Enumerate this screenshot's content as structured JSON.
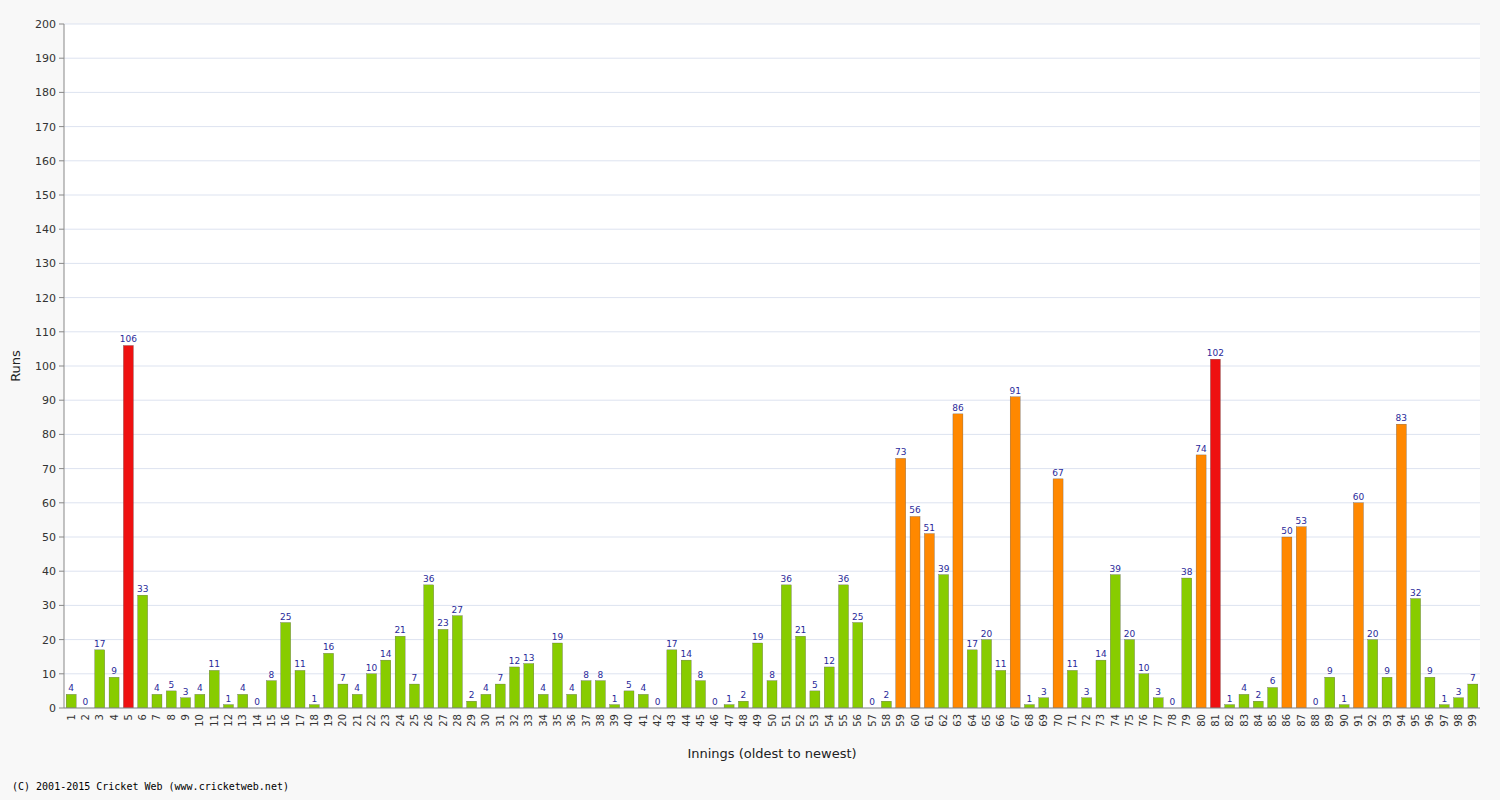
{
  "chart_data": {
    "type": "bar",
    "xlabel": "Innings (oldest to newest)",
    "ylabel": "Runs",
    "categories": [
      "1",
      "2",
      "3",
      "4",
      "5",
      "6",
      "7",
      "8",
      "9",
      "10",
      "11",
      "12",
      "13",
      "14",
      "15",
      "16",
      "17",
      "18",
      "19",
      "20",
      "21",
      "22",
      "23",
      "24",
      "25",
      "26",
      "27",
      "28",
      "29",
      "30",
      "31",
      "32",
      "33",
      "34",
      "35",
      "36",
      "37",
      "38",
      "39",
      "40",
      "41",
      "42",
      "43",
      "44",
      "45",
      "46",
      "47",
      "48",
      "49",
      "50",
      "51",
      "52",
      "53",
      "54",
      "55",
      "56",
      "57",
      "58",
      "59",
      "60",
      "61",
      "62",
      "63",
      "64",
      "65",
      "66",
      "67",
      "68",
      "69",
      "70",
      "71",
      "72",
      "73",
      "74",
      "75",
      "76",
      "77",
      "78",
      "79",
      "80",
      "81",
      "82",
      "83",
      "84",
      "85",
      "86",
      "87",
      "88",
      "89",
      "90",
      "91",
      "92",
      "93",
      "94",
      "95",
      "96",
      "97",
      "98",
      "99"
    ],
    "values": [
      4,
      0,
      17,
      9,
      106,
      33,
      4,
      5,
      3,
      4,
      11,
      1,
      4,
      0,
      8,
      25,
      11,
      1,
      16,
      7,
      4,
      10,
      14,
      21,
      7,
      36,
      23,
      27,
      2,
      4,
      7,
      12,
      13,
      4,
      19,
      4,
      8,
      8,
      1,
      5,
      4,
      0,
      17,
      14,
      8,
      0,
      1,
      2,
      19,
      8,
      36,
      21,
      5,
      12,
      36,
      25,
      0,
      2,
      73,
      56,
      51,
      39,
      86,
      17,
      20,
      11,
      91,
      1,
      3,
      67,
      11,
      3,
      14,
      39,
      20,
      10,
      3,
      0,
      38,
      74,
      102,
      1,
      4,
      2,
      6,
      50,
      53,
      0,
      9,
      1,
      60,
      20,
      9,
      83,
      32,
      9,
      1,
      3,
      7
    ],
    "colors": [
      "#88CC00",
      "#88CC00",
      "#88CC00",
      "#88CC00",
      "#EE1111",
      "#88CC00",
      "#88CC00",
      "#88CC00",
      "#88CC00",
      "#88CC00",
      "#88CC00",
      "#88CC00",
      "#88CC00",
      "#88CC00",
      "#88CC00",
      "#88CC00",
      "#88CC00",
      "#88CC00",
      "#88CC00",
      "#88CC00",
      "#88CC00",
      "#88CC00",
      "#88CC00",
      "#88CC00",
      "#88CC00",
      "#88CC00",
      "#88CC00",
      "#88CC00",
      "#88CC00",
      "#88CC00",
      "#88CC00",
      "#88CC00",
      "#88CC00",
      "#88CC00",
      "#88CC00",
      "#88CC00",
      "#88CC00",
      "#88CC00",
      "#88CC00",
      "#88CC00",
      "#88CC00",
      "#88CC00",
      "#88CC00",
      "#88CC00",
      "#88CC00",
      "#88CC00",
      "#88CC00",
      "#88CC00",
      "#88CC00",
      "#88CC00",
      "#88CC00",
      "#88CC00",
      "#88CC00",
      "#88CC00",
      "#88CC00",
      "#88CC00",
      "#88CC00",
      "#88CC00",
      "#FF8800",
      "#FF8800",
      "#FF8800",
      "#88CC00",
      "#FF8800",
      "#88CC00",
      "#88CC00",
      "#88CC00",
      "#FF8800",
      "#88CC00",
      "#88CC00",
      "#FF8800",
      "#88CC00",
      "#88CC00",
      "#88CC00",
      "#88CC00",
      "#88CC00",
      "#88CC00",
      "#88CC00",
      "#88CC00",
      "#88CC00",
      "#FF8800",
      "#EE1111",
      "#88CC00",
      "#88CC00",
      "#88CC00",
      "#88CC00",
      "#FF8800",
      "#FF8800",
      "#88CC00",
      "#88CC00",
      "#88CC00",
      "#FF8800",
      "#88CC00",
      "#88CC00",
      "#FF8800",
      "#88CC00",
      "#88CC00",
      "#88CC00",
      "#88CC00",
      "#88CC00"
    ],
    "ylim": [
      0,
      200
    ],
    "yticks": [
      0,
      10,
      20,
      30,
      40,
      50,
      60,
      70,
      80,
      90,
      100,
      110,
      120,
      130,
      140,
      150,
      160,
      170,
      180,
      190,
      200
    ],
    "grid": true,
    "data_labels": true,
    "annotations": [
      "(C) 2001-2015 Cricket Web (www.cricketweb.net)"
    ]
  }
}
